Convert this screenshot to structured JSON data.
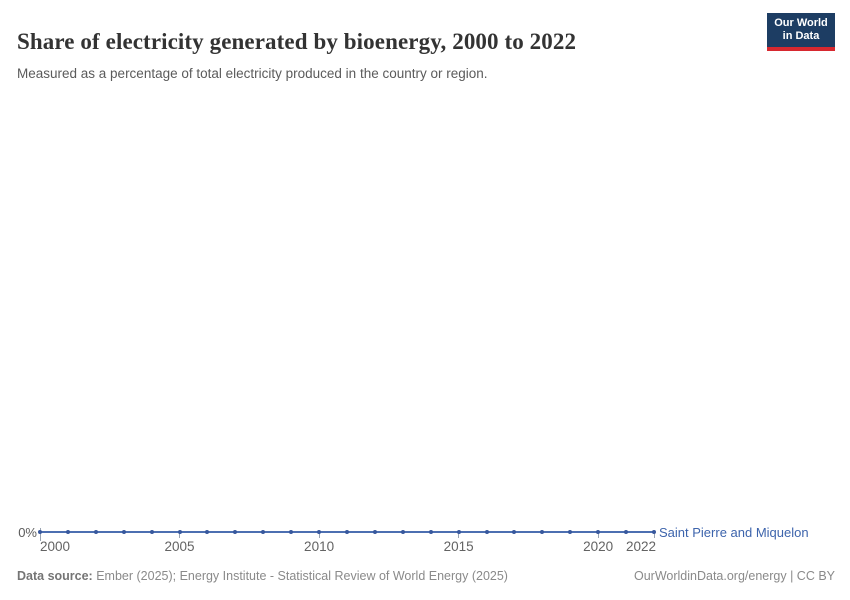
{
  "header": {
    "title": "Share of electricity generated by bioenergy, 2000 to 2022",
    "subtitle": "Measured as a percentage of total electricity produced in the country or region."
  },
  "logo": {
    "line1": "Our World",
    "line2": "in Data",
    "bg_color": "#1d3d63",
    "accent_color": "#d7282f"
  },
  "chart_data": {
    "type": "line",
    "title": "Share of electricity generated by bioenergy, 2000 to 2022",
    "x": [
      2000,
      2001,
      2002,
      2003,
      2004,
      2005,
      2006,
      2007,
      2008,
      2009,
      2010,
      2011,
      2012,
      2013,
      2014,
      2015,
      2016,
      2017,
      2018,
      2019,
      2020,
      2021,
      2022
    ],
    "series": [
      {
        "name": "Saint Pierre and Miquelon",
        "values": [
          0,
          0,
          0,
          0,
          0,
          0,
          0,
          0,
          0,
          0,
          0,
          0,
          0,
          0,
          0,
          0,
          0,
          0,
          0,
          0,
          0,
          0,
          0
        ],
        "color": "#4c6fb1",
        "point_color": "#38589d"
      }
    ],
    "x_ticks": [
      2000,
      2005,
      2010,
      2015,
      2020,
      2022
    ],
    "y_tick_labels": [
      "0%"
    ],
    "x_range": [
      2000,
      2022
    ],
    "grid": false,
    "legend_position": "end-of-line"
  },
  "footer": {
    "source_label": "Data source:",
    "source_text": " Ember (2025); Energy Institute - Statistical Review of World Energy (2025)",
    "credit": "OurWorldinData.org/energy | CC BY"
  }
}
